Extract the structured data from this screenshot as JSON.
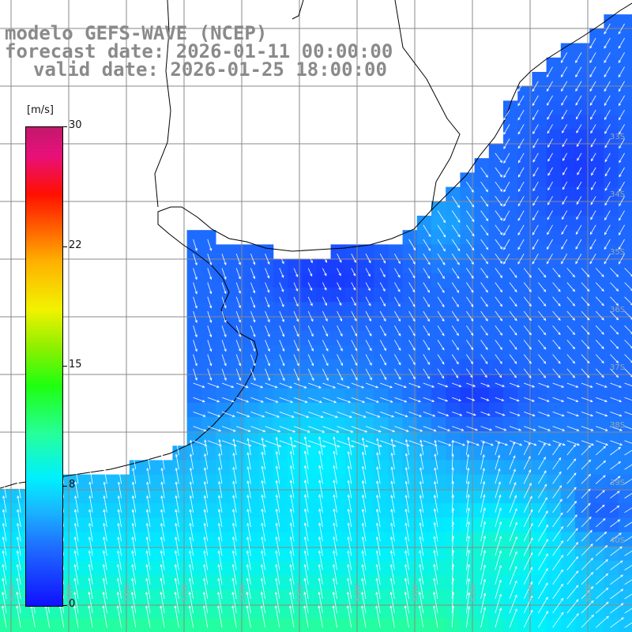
{
  "title": {
    "line1": "modelo GEFS-WAVE (NCEP)",
    "line2": "forecast date: 2026-01-11 00:00:00",
    "line3": "valid date: 2026-01-25 18:00:00"
  },
  "colorbar": {
    "unit": "[m/s]",
    "ticks": [
      "30",
      "22",
      "15",
      "8",
      "0"
    ],
    "range": [
      0,
      30
    ],
    "colors": [
      "#1010ff",
      "#19b7ff",
      "#00f0ff",
      "#1eff10",
      "#f2f200",
      "#ff6a00",
      "#ff1000",
      "#c2186c"
    ]
  },
  "grid": {
    "lat_labels": [
      "33S",
      "34S",
      "35S",
      "36S",
      "37S",
      "38S",
      "39S",
      "40S"
    ],
    "lon_labels": [
      "60W",
      "59W",
      "58W",
      "57W",
      "56W",
      "55W",
      "54W",
      "53W",
      "52W",
      "51W",
      "50W"
    ]
  }
}
